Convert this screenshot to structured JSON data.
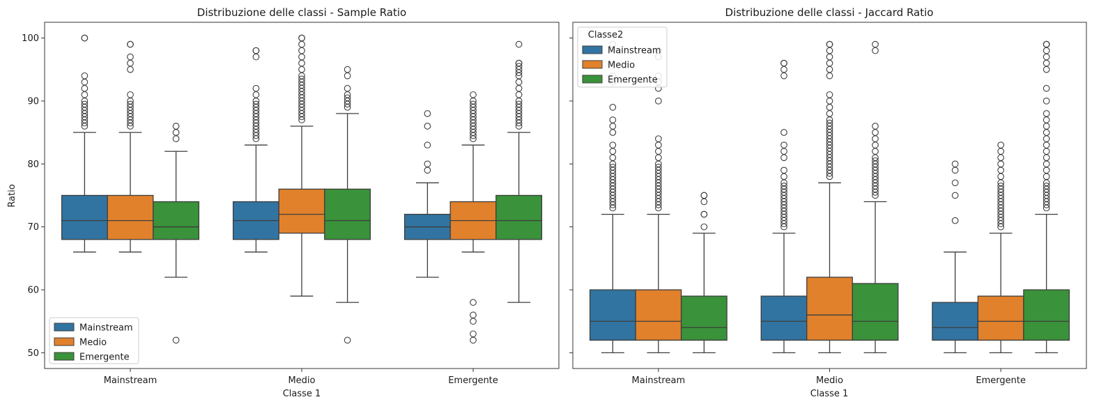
{
  "colors": {
    "Mainstream": "#3274a1",
    "Medio": "#e1812c",
    "Emergente": "#3a923a"
  },
  "chart_data": [
    {
      "type": "box",
      "title": "Distribuzione delle classi - Sample Ratio",
      "xlabel": "Classe 1",
      "ylabel": "Ratio",
      "categories": [
        "Mainstream",
        "Medio",
        "Emergente"
      ],
      "ylim": [
        47.5,
        102.5
      ],
      "yticks": [
        "50",
        "60",
        "70",
        "80",
        "90",
        "100"
      ],
      "legend": {
        "title": "",
        "position": "lower-left",
        "entries": [
          "Mainstream",
          "Medio",
          "Emergente"
        ]
      },
      "series": [
        {
          "name": "Mainstream",
          "boxes": [
            {
              "whislo": 66,
              "q1": 68,
              "med": 71,
              "q3": 75,
              "whishi": 85,
              "fliers": [
                86,
                86.5,
                87,
                87.5,
                88,
                88.5,
                89,
                89.5,
                90,
                91,
                92,
                93,
                94,
                100,
                100
              ]
            },
            {
              "whislo": 66,
              "q1": 68,
              "med": 71,
              "q3": 74,
              "whishi": 83,
              "fliers": [
                84,
                84.5,
                85,
                85.5,
                86,
                86.5,
                87,
                87.5,
                88,
                88.5,
                89,
                89.5,
                90,
                91,
                92,
                97,
                98,
                98
              ]
            },
            {
              "whislo": 62,
              "q1": 68,
              "med": 70,
              "q3": 72,
              "whishi": 77,
              "fliers": [
                79,
                80,
                83,
                86,
                88
              ]
            }
          ]
        },
        {
          "name": "Medio",
          "boxes": [
            {
              "whislo": 66,
              "q1": 68,
              "med": 71,
              "q3": 75,
              "whishi": 85,
              "fliers": [
                86,
                86.5,
                87,
                87.5,
                88,
                88.5,
                89,
                89.5,
                90,
                91,
                95,
                96,
                97,
                99,
                99
              ]
            },
            {
              "whislo": 59,
              "q1": 69,
              "med": 72,
              "q3": 76,
              "whishi": 86,
              "fliers": [
                87,
                87.5,
                88,
                88.5,
                89,
                89.5,
                90,
                90.5,
                91,
                91.5,
                92,
                92.5,
                93,
                93.5,
                94,
                95,
                96,
                97,
                98,
                99,
                100,
                100
              ]
            },
            {
              "whislo": 66,
              "q1": 68,
              "med": 71,
              "q3": 74,
              "whishi": 83,
              "fliers": [
                52,
                53,
                55,
                56,
                58,
                84,
                84.5,
                85,
                85.5,
                86,
                86.5,
                87,
                87.5,
                88,
                88.5,
                89,
                89.5,
                90,
                91
              ]
            }
          ]
        },
        {
          "name": "Emergente",
          "boxes": [
            {
              "whislo": 62,
              "q1": 68,
              "med": 70,
              "q3": 74,
              "whishi": 82,
              "fliers": [
                52,
                84,
                85,
                86
              ]
            },
            {
              "whislo": 58,
              "q1": 68,
              "med": 71,
              "q3": 76,
              "whishi": 88,
              "fliers": [
                52,
                89,
                89.5,
                90,
                90.5,
                91,
                92,
                94,
                95
              ]
            },
            {
              "whislo": 58,
              "q1": 68,
              "med": 71,
              "q3": 75,
              "whishi": 85,
              "fliers": [
                86,
                86.5,
                87,
                87.5,
                88,
                88.5,
                89,
                89.5,
                90,
                91,
                92,
                93,
                94,
                94.5,
                95,
                95.5,
                96,
                96,
                99
              ]
            }
          ]
        }
      ]
    },
    {
      "type": "box",
      "title": "Distribuzione delle classi - Jaccard Ratio",
      "xlabel": "Classe 1",
      "ylabel": "",
      "categories": [
        "Mainstream",
        "Medio",
        "Emergente"
      ],
      "ylim": [
        47.5,
        102.5
      ],
      "yticks": [
        "",
        "",
        "",
        "",
        "",
        ""
      ],
      "legend": {
        "title": "Classe2",
        "position": "upper-left",
        "entries": [
          "Mainstream",
          "Medio",
          "Emergente"
        ]
      },
      "series": [
        {
          "name": "Mainstream",
          "boxes": [
            {
              "whislo": 50,
              "q1": 52,
              "med": 55,
              "q3": 60,
              "whishi": 72,
              "fliers": [
                73,
                73.5,
                74,
                74.5,
                75,
                75.5,
                76,
                76.5,
                77,
                77.5,
                78,
                78.5,
                79,
                79.5,
                80,
                81,
                82,
                83,
                85,
                86,
                87,
                89,
                93,
                94,
                99
              ]
            },
            {
              "whislo": 50,
              "q1": 52,
              "med": 55,
              "q3": 59,
              "whishi": 69,
              "fliers": [
                70,
                70.5,
                71,
                71.5,
                72,
                72.5,
                73,
                73.5,
                74,
                74.5,
                75,
                75.5,
                76,
                76.5,
                77,
                78,
                79,
                81,
                82,
                83,
                85,
                94,
                95,
                96,
                96
              ]
            },
            {
              "whislo": 50,
              "q1": 52,
              "med": 54,
              "q3": 58,
              "whishi": 66,
              "fliers": [
                71,
                75,
                77,
                79,
                80
              ]
            }
          ]
        },
        {
          "name": "Medio",
          "boxes": [
            {
              "whislo": 50,
              "q1": 52,
              "med": 55,
              "q3": 60,
              "whishi": 72,
              "fliers": [
                73,
                73.5,
                74,
                74.5,
                75,
                75.5,
                76,
                76.5,
                77,
                77.5,
                78,
                78.5,
                79,
                79.5,
                80,
                81,
                82,
                83,
                84,
                90,
                92,
                93,
                94,
                97,
                98
              ]
            },
            {
              "whislo": 50,
              "q1": 52,
              "med": 56,
              "q3": 62,
              "whishi": 77,
              "fliers": [
                78,
                78.5,
                79,
                79.5,
                80,
                80.5,
                81,
                81.5,
                82,
                82.5,
                83,
                83.5,
                84,
                84.5,
                85,
                85.5,
                86,
                86.5,
                87,
                88,
                89,
                90,
                91,
                94,
                95,
                96,
                97,
                98,
                99,
                99
              ]
            },
            {
              "whislo": 50,
              "q1": 52,
              "med": 55,
              "q3": 59,
              "whishi": 69,
              "fliers": [
                70,
                70.5,
                71,
                71.5,
                72,
                72.5,
                73,
                73.5,
                74,
                74.5,
                75,
                75.5,
                76,
                76.5,
                77,
                78,
                79,
                80,
                81,
                82,
                83
              ]
            }
          ]
        },
        {
          "name": "Emergente",
          "boxes": [
            {
              "whislo": 50,
              "q1": 52,
              "med": 54,
              "q3": 59,
              "whishi": 69,
              "fliers": [
                70,
                72,
                72,
                74,
                75,
                75
              ]
            },
            {
              "whislo": 50,
              "q1": 52,
              "med": 55,
              "q3": 61,
              "whishi": 74,
              "fliers": [
                75,
                75.5,
                76,
                76.5,
                77,
                77.5,
                78,
                78.5,
                79,
                79.5,
                80,
                80.5,
                81,
                82,
                83,
                84,
                85,
                86,
                98,
                99
              ]
            },
            {
              "whislo": 50,
              "q1": 52,
              "med": 55,
              "q3": 60,
              "whishi": 72,
              "fliers": [
                73,
                73.5,
                74,
                74.5,
                75,
                75.5,
                76,
                76.5,
                77,
                78,
                79,
                80,
                81,
                82,
                83,
                84,
                85,
                86,
                87,
                88,
                90,
                92,
                95,
                96,
                97,
                98,
                99,
                99,
                99
              ]
            }
          ]
        }
      ]
    }
  ]
}
